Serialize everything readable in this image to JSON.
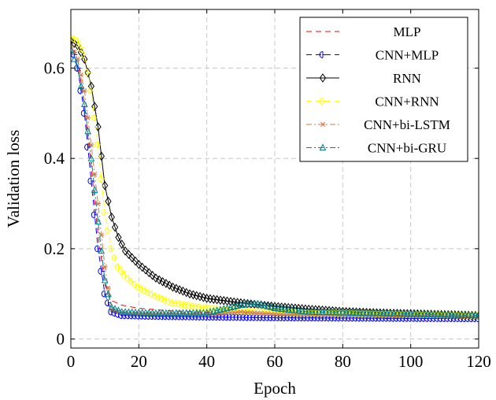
{
  "chart_data": {
    "type": "line",
    "xlabel": "Epoch",
    "ylabel": "Validation loss",
    "xlim": [
      0,
      120
    ],
    "ylim": [
      -0.02,
      0.73
    ],
    "xticks": [
      0,
      20,
      40,
      60,
      80,
      100,
      120
    ],
    "xtick_labels": [
      "0",
      "20",
      "40",
      "60",
      "80",
      "100",
      "120"
    ],
    "yticks": [
      0,
      0.2,
      0.4,
      0.6
    ],
    "ytick_labels": [
      "0",
      "0.2",
      "0.4",
      "0.6"
    ],
    "grid": true,
    "legend_position": "top-right",
    "series": [
      {
        "name": "MLP",
        "color": "#ff0000",
        "line_style": "dashed",
        "marker": "none",
        "keypoints": [
          [
            0,
            0.66
          ],
          [
            2,
            0.62
          ],
          [
            4,
            0.52
          ],
          [
            6,
            0.38
          ],
          [
            8,
            0.23
          ],
          [
            10,
            0.12
          ],
          [
            12,
            0.085
          ],
          [
            15,
            0.075
          ],
          [
            20,
            0.068
          ],
          [
            30,
            0.062
          ],
          [
            50,
            0.057
          ],
          [
            80,
            0.052
          ],
          [
            120,
            0.049
          ]
        ]
      },
      {
        "name": "CNN+MLP",
        "color": "#0000ff",
        "line_style": "dashed",
        "marker": "half-circle",
        "keypoints": [
          [
            0,
            0.66
          ],
          [
            2,
            0.6
          ],
          [
            4,
            0.5
          ],
          [
            6,
            0.35
          ],
          [
            8,
            0.2
          ],
          [
            10,
            0.1
          ],
          [
            12,
            0.06
          ],
          [
            15,
            0.052
          ],
          [
            25,
            0.05
          ],
          [
            60,
            0.047
          ],
          [
            120,
            0.045
          ]
        ]
      },
      {
        "name": "RNN",
        "color": "#000000",
        "line_style": "solid",
        "marker": "diamond",
        "keypoints": [
          [
            0,
            0.66
          ],
          [
            2,
            0.65
          ],
          [
            4,
            0.62
          ],
          [
            6,
            0.56
          ],
          [
            8,
            0.47
          ],
          [
            10,
            0.34
          ],
          [
            12,
            0.27
          ],
          [
            14,
            0.225
          ],
          [
            16,
            0.195
          ],
          [
            20,
            0.165
          ],
          [
            25,
            0.135
          ],
          [
            30,
            0.115
          ],
          [
            35,
            0.1
          ],
          [
            40,
            0.09
          ],
          [
            50,
            0.08
          ],
          [
            60,
            0.072
          ],
          [
            70,
            0.066
          ],
          [
            80,
            0.061
          ],
          [
            90,
            0.058
          ],
          [
            100,
            0.056
          ],
          [
            110,
            0.054
          ],
          [
            120,
            0.052
          ]
        ]
      },
      {
        "name": "CNN+RNN",
        "color": "#ffff00",
        "line_style": "dashed",
        "marker": "half-circle",
        "keypoints": [
          [
            0,
            0.67
          ],
          [
            2,
            0.66
          ],
          [
            4,
            0.63
          ],
          [
            6,
            0.55
          ],
          [
            8,
            0.43
          ],
          [
            10,
            0.28
          ],
          [
            12,
            0.2
          ],
          [
            14,
            0.16
          ],
          [
            16,
            0.14
          ],
          [
            20,
            0.115
          ],
          [
            25,
            0.095
          ],
          [
            30,
            0.08
          ],
          [
            40,
            0.068
          ],
          [
            50,
            0.062
          ],
          [
            70,
            0.058
          ],
          [
            120,
            0.052
          ]
        ]
      },
      {
        "name": "CNN+bi-LSTM",
        "color": "#cd7f50",
        "line_style": "dash-dot",
        "marker": "asterisk",
        "keypoints": [
          [
            0,
            0.65
          ],
          [
            2,
            0.62
          ],
          [
            4,
            0.55
          ],
          [
            6,
            0.43
          ],
          [
            8,
            0.3
          ],
          [
            10,
            0.16
          ],
          [
            12,
            0.065
          ],
          [
            15,
            0.058
          ],
          [
            20,
            0.056
          ],
          [
            40,
            0.054
          ],
          [
            50,
            0.06
          ],
          [
            60,
            0.055
          ],
          [
            120,
            0.05
          ]
        ]
      },
      {
        "name": "CNN+bi-GRU",
        "color": "#00808c",
        "line_style": "dash-dot",
        "marker": "triangle",
        "keypoints": [
          [
            0,
            0.64
          ],
          [
            2,
            0.6
          ],
          [
            4,
            0.52
          ],
          [
            6,
            0.4
          ],
          [
            8,
            0.26
          ],
          [
            10,
            0.13
          ],
          [
            12,
            0.07
          ],
          [
            15,
            0.06
          ],
          [
            25,
            0.057
          ],
          [
            40,
            0.058
          ],
          [
            50,
            0.075
          ],
          [
            55,
            0.078
          ],
          [
            60,
            0.068
          ],
          [
            70,
            0.06
          ],
          [
            120,
            0.052
          ]
        ]
      }
    ]
  }
}
